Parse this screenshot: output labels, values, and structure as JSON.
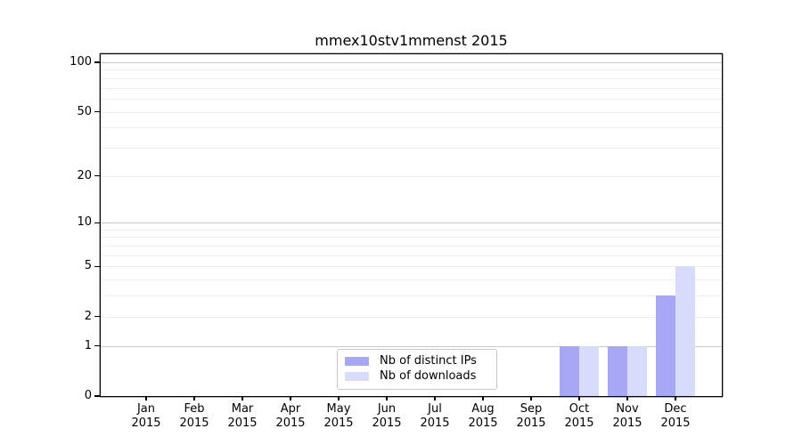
{
  "chart_data": {
    "type": "bar",
    "title": "mmex10stv1mmenst 2015",
    "categories": [
      "Jan",
      "Feb",
      "Mar",
      "Apr",
      "May",
      "Jun",
      "Jul",
      "Aug",
      "Sep",
      "Oct",
      "Nov",
      "Dec"
    ],
    "year_label": "2015",
    "series": [
      {
        "name": "Nb of distinct IPs",
        "color": "#a7a7f6",
        "values": [
          0,
          0,
          0,
          0,
          0,
          0,
          0,
          0,
          0,
          1,
          1,
          3
        ]
      },
      {
        "name": "Nb of downloads",
        "color": "#d9dbfa",
        "values": [
          0,
          0,
          0,
          0,
          0,
          0,
          0,
          0,
          0,
          1,
          1,
          5
        ]
      }
    ],
    "y_axis": {
      "scale": "log1p",
      "tick_labels": [
        "100",
        "50",
        "20",
        "10",
        "5",
        "2",
        "1",
        "0"
      ],
      "tick_values": [
        100,
        50,
        20,
        10,
        5,
        2,
        1,
        0
      ],
      "major_gridline_values": [
        1,
        10,
        100
      ],
      "minor_gridline_values": [
        2,
        3,
        4,
        5,
        6,
        7,
        8,
        9,
        20,
        30,
        40,
        50,
        60,
        70,
        80,
        90
      ],
      "range": [
        0,
        100
      ]
    },
    "legend": {
      "entries": [
        "Nb of distinct IPs",
        "Nb of downloads"
      ],
      "position": "bottom-center"
    },
    "grid": "horizontal-only"
  },
  "colors": {
    "bar_distinct_ips": "#a7a7f6",
    "bar_downloads": "#d9dbfa",
    "major_gridline": "#c8c8c8",
    "minor_gridline": "#ececec",
    "axis_frame": "#000000"
  }
}
